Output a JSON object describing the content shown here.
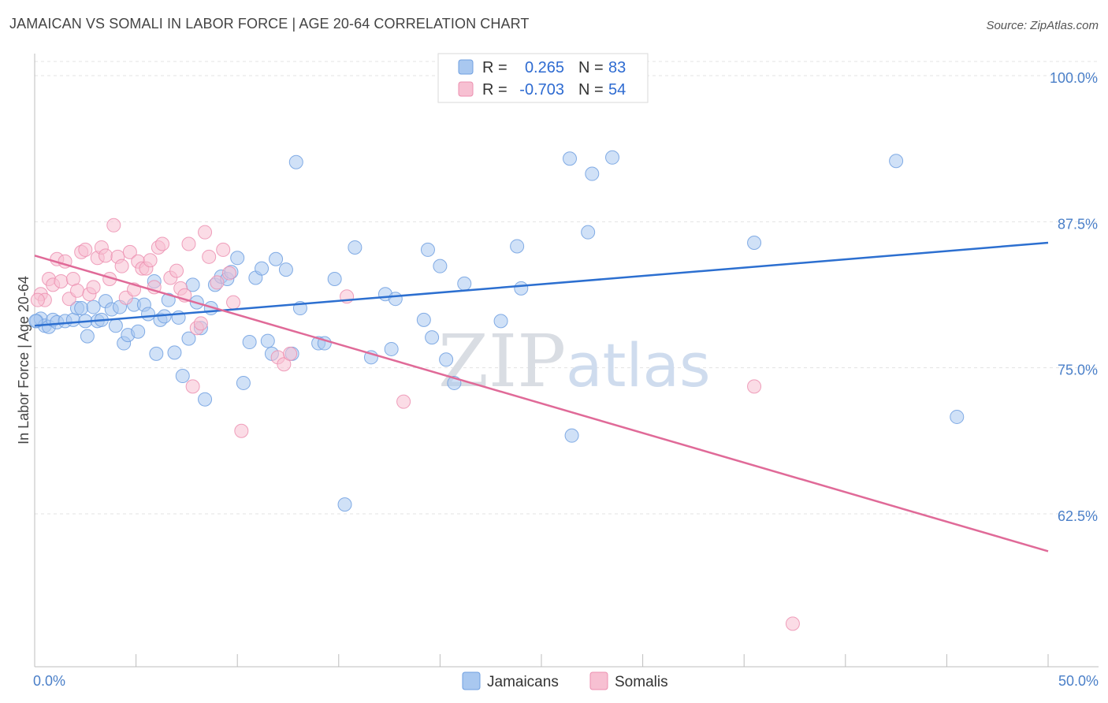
{
  "title": "JAMAICAN VS SOMALI IN LABOR FORCE | AGE 20-64 CORRELATION CHART",
  "source": "Source: ZipAtlas.com",
  "watermark": {
    "zip": "ZIP",
    "atlas": "atlas"
  },
  "legend_top": [
    {
      "r_label": "R =",
      "r_value": "0.265",
      "n_label": "N =",
      "n_value": "83",
      "color": "#a9c8f0",
      "stroke": "#6f9fe0"
    },
    {
      "r_label": "R =",
      "r_value": "-0.703",
      "n_label": "N =",
      "n_value": "54",
      "color": "#f7c0d2",
      "stroke": "#ec8fb0"
    }
  ],
  "chart_data": {
    "type": "scatter",
    "title": "JAMAICAN VS SOMALI IN LABOR FORCE | AGE 20-64 CORRELATION CHART",
    "xlabel": "",
    "ylabel": "In Labor Force | Age 20-64",
    "xlim": [
      0,
      50
    ],
    "ylim": [
      50,
      103
    ],
    "x_tick_labels": [
      "0.0%",
      "50.0%"
    ],
    "y_tick_labels": [
      "100.0%",
      "87.5%",
      "75.0%",
      "62.5%"
    ],
    "y_ticks": [
      100,
      87.5,
      75,
      62.5
    ],
    "grid": true,
    "legend_position": "top-center",
    "series": [
      {
        "name": "Jamaicans",
        "color": "#6f9fe0",
        "fill": "#a9c8f0",
        "line_color": "#2c6fd0",
        "trend": {
          "x": [
            0,
            50
          ],
          "y": [
            78.6,
            85.7
          ]
        },
        "points": [
          [
            0.1,
            79
          ],
          [
            0.3,
            79.2
          ],
          [
            0.5,
            78.6
          ],
          [
            0.7,
            78.5
          ],
          [
            0.9,
            79.1
          ],
          [
            1.1,
            78.9
          ],
          [
            1.5,
            79
          ],
          [
            1.9,
            79.1
          ],
          [
            2.1,
            80.1
          ],
          [
            2.3,
            80.1
          ],
          [
            2.5,
            79
          ],
          [
            2.6,
            77.7
          ],
          [
            2.9,
            80.2
          ],
          [
            3.1,
            79
          ],
          [
            3.3,
            79.1
          ],
          [
            3.5,
            80.7
          ],
          [
            3.8,
            80
          ],
          [
            4.0,
            78.6
          ],
          [
            4.2,
            80.2
          ],
          [
            4.4,
            77.1
          ],
          [
            4.6,
            77.8
          ],
          [
            4.9,
            80.4
          ],
          [
            5.1,
            78.1
          ],
          [
            5.4,
            80.4
          ],
          [
            5.6,
            79.6
          ],
          [
            5.9,
            82.4
          ],
          [
            6.0,
            76.2
          ],
          [
            6.2,
            79.1
          ],
          [
            6.4,
            79.4
          ],
          [
            6.6,
            80.8
          ],
          [
            6.9,
            76.3
          ],
          [
            7.1,
            79.3
          ],
          [
            7.3,
            74.3
          ],
          [
            7.6,
            77.5
          ],
          [
            7.8,
            82.1
          ],
          [
            8.0,
            80.6
          ],
          [
            8.2,
            78.4
          ],
          [
            8.4,
            72.3
          ],
          [
            8.7,
            80.1
          ],
          [
            8.9,
            82.1
          ],
          [
            9.2,
            82.8
          ],
          [
            9.5,
            82.6
          ],
          [
            9.7,
            83.2
          ],
          [
            10.0,
            84.4
          ],
          [
            10.3,
            73.7
          ],
          [
            10.6,
            77.2
          ],
          [
            10.9,
            82.7
          ],
          [
            11.2,
            83.5
          ],
          [
            11.5,
            77.3
          ],
          [
            11.7,
            76.2
          ],
          [
            11.9,
            84.3
          ],
          [
            12.4,
            83.4
          ],
          [
            12.7,
            76.2
          ],
          [
            12.9,
            92.6
          ],
          [
            13.1,
            80.1
          ],
          [
            14.0,
            77.1
          ],
          [
            14.3,
            77.1
          ],
          [
            14.8,
            82.6
          ],
          [
            15.3,
            63.3
          ],
          [
            15.8,
            85.3
          ],
          [
            16.6,
            75.9
          ],
          [
            17.3,
            81.3
          ],
          [
            17.6,
            76.6
          ],
          [
            17.8,
            80.9
          ],
          [
            19.2,
            79.1
          ],
          [
            19.4,
            85.1
          ],
          [
            19.6,
            77.6
          ],
          [
            20.0,
            83.7
          ],
          [
            20.3,
            75.7
          ],
          [
            20.7,
            73.7
          ],
          [
            21.2,
            82.2
          ],
          [
            23.0,
            79
          ],
          [
            23.8,
            85.4
          ],
          [
            24.0,
            81.8
          ],
          [
            26.5,
            69.2
          ],
          [
            26.4,
            92.9
          ],
          [
            27.3,
            86.6
          ],
          [
            27.5,
            91.6
          ],
          [
            28.5,
            93
          ],
          [
            35.5,
            85.7
          ],
          [
            42.5,
            92.7
          ],
          [
            45.5,
            70.8
          ],
          [
            0.05,
            79
          ]
        ]
      },
      {
        "name": "Somalis",
        "color": "#ec8fb0",
        "fill": "#f7c0d2",
        "line_color": "#e06a98",
        "trend": {
          "x": [
            0,
            50
          ],
          "y": [
            84.6,
            59.3
          ]
        },
        "points": [
          [
            0.3,
            81.3
          ],
          [
            0.5,
            80.8
          ],
          [
            0.7,
            82.6
          ],
          [
            0.9,
            82.1
          ],
          [
            1.1,
            84.3
          ],
          [
            1.3,
            82.4
          ],
          [
            1.5,
            84.1
          ],
          [
            1.7,
            80.9
          ],
          [
            1.9,
            82.6
          ],
          [
            2.1,
            81.6
          ],
          [
            2.3,
            84.9
          ],
          [
            2.5,
            85.1
          ],
          [
            2.7,
            81.3
          ],
          [
            2.9,
            81.9
          ],
          [
            3.1,
            84.4
          ],
          [
            3.3,
            85.3
          ],
          [
            3.5,
            84.6
          ],
          [
            3.7,
            82.6
          ],
          [
            3.9,
            87.2
          ],
          [
            4.1,
            84.5
          ],
          [
            4.3,
            83.7
          ],
          [
            4.5,
            81
          ],
          [
            4.7,
            84.9
          ],
          [
            4.9,
            81.7
          ],
          [
            5.1,
            84.1
          ],
          [
            5.3,
            83.5
          ],
          [
            5.5,
            83.5
          ],
          [
            5.7,
            84.2
          ],
          [
            5.9,
            81.9
          ],
          [
            6.1,
            85.3
          ],
          [
            6.3,
            85.6
          ],
          [
            6.7,
            82.7
          ],
          [
            7.0,
            83.3
          ],
          [
            7.2,
            81.8
          ],
          [
            7.4,
            81.2
          ],
          [
            7.6,
            85.6
          ],
          [
            7.8,
            73.4
          ],
          [
            8.0,
            78.4
          ],
          [
            8.2,
            78.8
          ],
          [
            8.4,
            86.6
          ],
          [
            8.6,
            84.5
          ],
          [
            9.0,
            82.3
          ],
          [
            9.3,
            85.1
          ],
          [
            9.6,
            83.1
          ],
          [
            9.8,
            80.6
          ],
          [
            10.2,
            69.6
          ],
          [
            12.0,
            75.9
          ],
          [
            12.3,
            75.3
          ],
          [
            12.6,
            76.2
          ],
          [
            15.4,
            81.1
          ],
          [
            18.2,
            72.1
          ],
          [
            35.5,
            73.4
          ],
          [
            37.4,
            53.1
          ],
          [
            0.15,
            80.8
          ]
        ]
      }
    ]
  },
  "bottom_legend": [
    {
      "label": "Jamaicans",
      "fill": "#a9c8f0",
      "stroke": "#6f9fe0"
    },
    {
      "label": "Somalis",
      "fill": "#f7c0d2",
      "stroke": "#ec8fb0"
    }
  ]
}
